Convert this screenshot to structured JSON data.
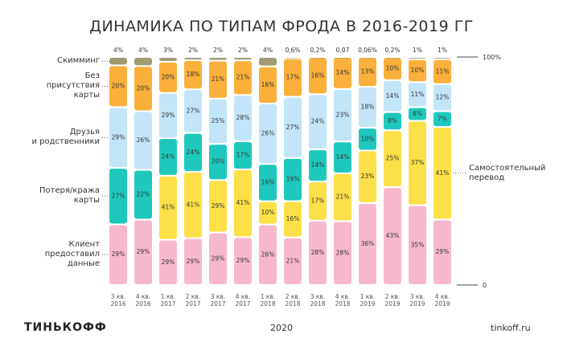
{
  "title": "ДИНАМИКА ПО ТИПАМ ФРОДА В 2016-2019 ГГ",
  "chart_data": {
    "type": "stacked_bar_100",
    "categories": [
      "3 кв.\n2016",
      "4 кв.\n2016",
      "1 кв.\n2017",
      "2 кв.\n2017",
      "3 кв.\n2017",
      "4 кв.\n2017",
      "1 кв.\n2018",
      "2 кв.\n2018",
      "3 кв.\n2018",
      "4 кв.\n2018",
      "1 кв.\n2019",
      "2 кв.\n2019",
      "3 кв.\n2019",
      "4 кв.\n2019"
    ],
    "ylim": [
      0,
      100
    ],
    "yticks": [
      0,
      {
        "value": 100,
        "label": "100%"
      }
    ],
    "grid": false,
    "series": [
      {
        "name": "Клиент\nпредоставил\nданные",
        "color": "#f7b8cd",
        "legend": "left",
        "values": [
          29,
          29,
          29,
          29,
          29,
          29,
          26,
          21,
          28,
          28,
          36,
          43,
          35,
          29
        ],
        "value_labels": [
          "29%",
          "29%",
          "29%",
          "29%",
          "29%",
          "29%",
          "26%",
          "21%",
          "28%",
          "28%",
          "36%",
          "43%",
          "35%",
          "29%"
        ]
      },
      {
        "name": "Самостоятельный\nперевод",
        "color": "#fde047",
        "legend": "right",
        "values": [
          null,
          null,
          41,
          41,
          29,
          41,
          10,
          16,
          17,
          21,
          23,
          25,
          37,
          41
        ],
        "value_labels": [
          null,
          null,
          "41%",
          "41%",
          "29%",
          "41%",
          "10%",
          "16%",
          "17%",
          "21%",
          "23%",
          "25%",
          "37%",
          "41%"
        ]
      },
      {
        "name": "Потеря/кража\nкарты",
        "color": "#1fc8bd",
        "legend": "left",
        "values": [
          27,
          22,
          24,
          24,
          20,
          17,
          16,
          19,
          14,
          14,
          10,
          8,
          6,
          7
        ],
        "value_labels": [
          "27%",
          "22%",
          "24%",
          "24%",
          "20%",
          "17%",
          "16%",
          "19%",
          "14%",
          "14%",
          "10%",
          "8%",
          "6%",
          "7%"
        ]
      },
      {
        "name": "Друзья\nи родственники",
        "color": "#c2e5f8",
        "legend": "left",
        "values": [
          29,
          26,
          29,
          27,
          25,
          28,
          26,
          27,
          24,
          23,
          18,
          14,
          11,
          12
        ],
        "value_labels": [
          "29%",
          "26%",
          "29%",
          "27%",
          "25%",
          "28%",
          "26%",
          "27%",
          "24%",
          "23%",
          "18%",
          "14%",
          "11%",
          "12%"
        ]
      },
      {
        "name": "Без\nприсутствия\nкарты",
        "color": "#fbb03b",
        "legend": "left",
        "values": [
          20,
          20,
          20,
          18,
          21,
          21,
          16,
          17,
          16,
          14,
          13,
          10,
          10,
          11
        ],
        "value_labels": [
          "20%",
          "20%",
          "20%",
          "18%",
          "21%",
          "21%",
          "16%",
          "17%",
          "16%",
          "14%",
          "13%",
          "10%",
          "10%",
          "11%"
        ]
      },
      {
        "name": "Скимминг",
        "color": "#9f9a6f",
        "legend": "left",
        "label_above": true,
        "values": [
          4,
          4,
          3,
          2,
          2,
          2,
          4,
          0.6,
          0.2,
          0.07,
          0.06,
          0.2,
          1,
          1
        ],
        "value_labels": [
          "4%",
          "4%",
          "3%",
          "2%",
          "2%",
          "2%",
          "4%",
          "0,6%",
          "0,2%",
          "0,07",
          "0,06%",
          "0,2%",
          "1%",
          "1%"
        ]
      }
    ]
  },
  "footer": {
    "logo": "ТИНЬКОФФ",
    "year": "2020",
    "site": "tinkoff.ru"
  }
}
